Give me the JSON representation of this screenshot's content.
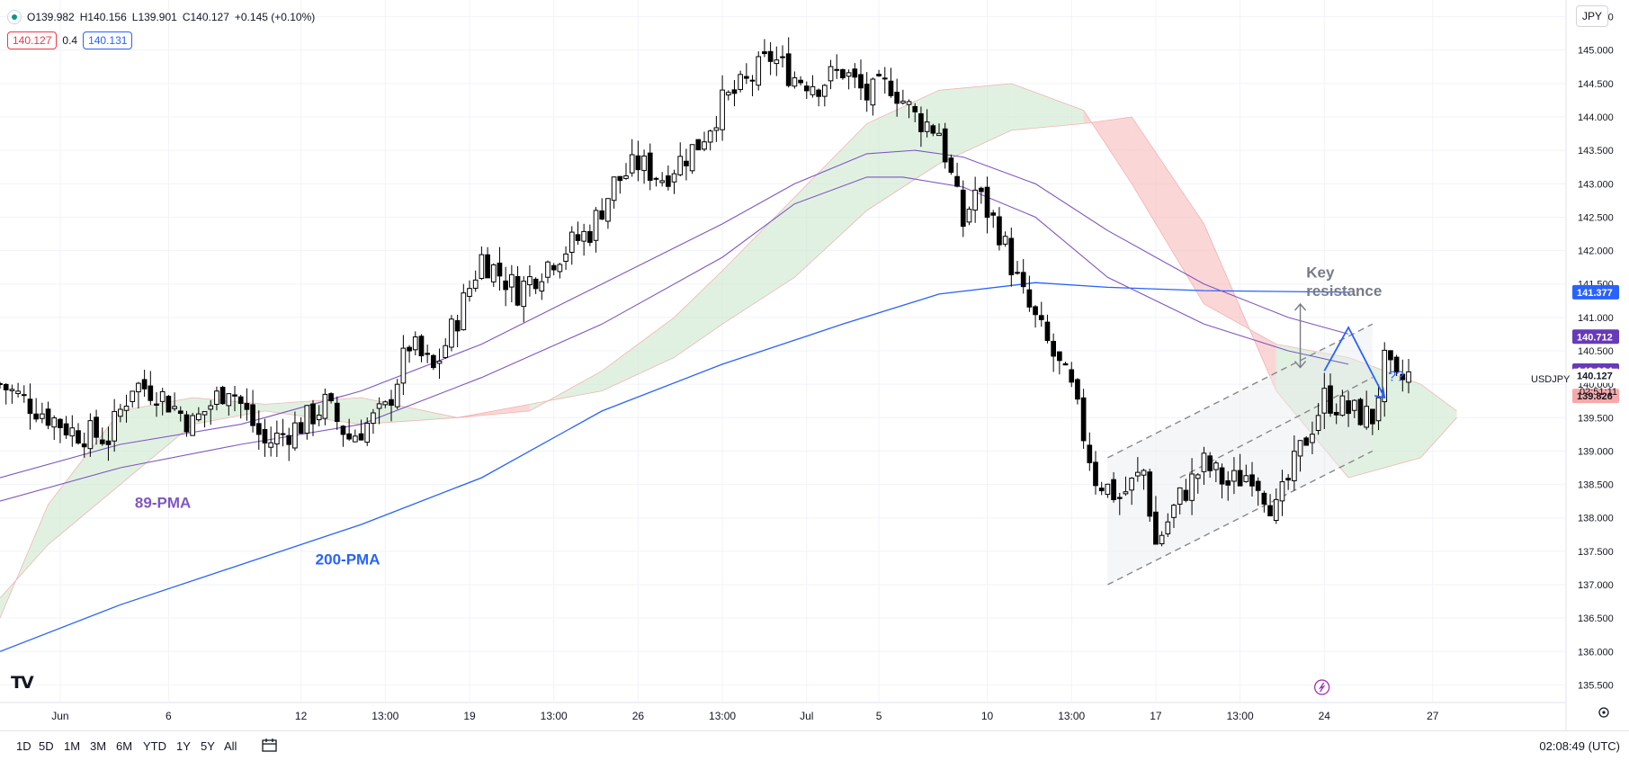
{
  "header": {
    "open": "O139.982",
    "high": "H140.156",
    "low": "L139.901",
    "close": "C140.127",
    "change": "+0.145 (+0.10%)",
    "bid": "140.127",
    "spread": "0.4",
    "ask": "140.131"
  },
  "currency": "JPY",
  "symbol": "USDJPY",
  "countdown": "02:51:11",
  "clock": "02:08:49 (UTC)",
  "logo_text": "TV",
  "timeframes": [
    "1D",
    "5D",
    "1M",
    "3M",
    "6M",
    "YTD",
    "1Y",
    "5Y",
    "All"
  ],
  "colors": {
    "up_candle": "#ffffff",
    "down_candle": "#000000",
    "ma89": "#7e57c2",
    "ma200": "#2962ff",
    "cloud_bull": "#c8e6c9",
    "cloud_bear": "#f8b4b4",
    "projection": "#2962ff",
    "channel": "#888888"
  },
  "chart_data": {
    "type": "candlestick",
    "instrument": "USDJPY",
    "y_axis": {
      "min": 135.25,
      "max": 145.75,
      "ticks": [
        "135.500",
        "136.000",
        "136.500",
        "137.000",
        "137.500",
        "138.000",
        "138.500",
        "139.000",
        "139.500",
        "140.000",
        "140.500",
        "141.000",
        "141.500",
        "142.000",
        "142.500",
        "143.000",
        "143.500",
        "144.000",
        "144.500",
        "145.000",
        "145.500"
      ]
    },
    "x_axis": {
      "start_bar": 0,
      "end_bar": 130,
      "labels": [
        {
          "bar": 5,
          "text": "Jun"
        },
        {
          "bar": 14,
          "text": "6"
        },
        {
          "bar": 25,
          "text": "12"
        },
        {
          "bar": 32,
          "text": "13:00"
        },
        {
          "bar": 39,
          "text": "19"
        },
        {
          "bar": 46,
          "text": "13:00"
        },
        {
          "bar": 53,
          "text": "26"
        },
        {
          "bar": 60,
          "text": "13:00"
        },
        {
          "bar": 67,
          "text": "Jul"
        },
        {
          "bar": 73,
          "text": "5"
        },
        {
          "bar": 82,
          "text": "10"
        },
        {
          "bar": 89,
          "text": "13:00"
        },
        {
          "bar": 96,
          "text": "17"
        },
        {
          "bar": 103,
          "text": "13:00"
        },
        {
          "bar": 110,
          "text": "24"
        },
        {
          "bar": 119,
          "text": "27"
        }
      ]
    },
    "close_path": [
      {
        "bar": 0,
        "close": 140.0
      },
      {
        "bar": 6,
        "close": 139.3
      },
      {
        "bar": 9,
        "close": 139.2
      },
      {
        "bar": 11,
        "close": 140.0
      },
      {
        "bar": 13,
        "close": 139.9
      },
      {
        "bar": 16,
        "close": 139.4
      },
      {
        "bar": 19,
        "close": 140.0
      },
      {
        "bar": 22,
        "close": 139.1
      },
      {
        "bar": 25,
        "close": 139.4
      },
      {
        "bar": 27,
        "close": 139.7
      },
      {
        "bar": 29,
        "close": 139.2
      },
      {
        "bar": 32,
        "close": 139.6
      },
      {
        "bar": 34,
        "close": 140.6
      },
      {
        "bar": 36,
        "close": 140.2
      },
      {
        "bar": 38,
        "close": 141.0
      },
      {
        "bar": 40,
        "close": 141.9
      },
      {
        "bar": 43,
        "close": 141.4
      },
      {
        "bar": 46,
        "close": 141.9
      },
      {
        "bar": 49,
        "close": 142.3
      },
      {
        "bar": 51,
        "close": 143.0
      },
      {
        "bar": 53,
        "close": 143.3
      },
      {
        "bar": 55,
        "close": 143.1
      },
      {
        "bar": 58,
        "close": 143.6
      },
      {
        "bar": 60,
        "close": 144.2
      },
      {
        "bar": 62,
        "close": 144.5
      },
      {
        "bar": 64,
        "close": 144.9
      },
      {
        "bar": 66,
        "close": 144.6
      },
      {
        "bar": 68,
        "close": 144.5
      },
      {
        "bar": 70,
        "close": 144.7
      },
      {
        "bar": 72,
        "close": 144.3
      },
      {
        "bar": 74,
        "close": 144.5
      },
      {
        "bar": 76,
        "close": 144.0
      },
      {
        "bar": 78,
        "close": 143.8
      },
      {
        "bar": 80,
        "close": 142.4
      },
      {
        "bar": 81,
        "close": 142.9
      },
      {
        "bar": 83,
        "close": 142.3
      },
      {
        "bar": 85,
        "close": 141.3
      },
      {
        "bar": 87,
        "close": 140.6
      },
      {
        "bar": 89,
        "close": 139.9
      },
      {
        "bar": 91,
        "close": 138.6
      },
      {
        "bar": 93,
        "close": 138.3
      },
      {
        "bar": 95,
        "close": 138.7
      },
      {
        "bar": 96,
        "close": 137.6
      },
      {
        "bar": 98,
        "close": 138.3
      },
      {
        "bar": 100,
        "close": 138.8
      },
      {
        "bar": 102,
        "close": 138.5
      },
      {
        "bar": 104,
        "close": 138.7
      },
      {
        "bar": 106,
        "close": 138.1
      },
      {
        "bar": 108,
        "close": 139.0
      },
      {
        "bar": 110,
        "close": 139.8
      },
      {
        "bar": 112,
        "close": 139.6
      },
      {
        "bar": 114,
        "close": 139.5
      },
      {
        "bar": 115,
        "close": 140.3
      },
      {
        "bar": 116,
        "close": 140.0
      },
      {
        "bar": 117,
        "close": 140.127
      }
    ],
    "ma89": [
      {
        "bar": 0,
        "v": 138.25
      },
      {
        "bar": 10,
        "v": 138.75
      },
      {
        "bar": 20,
        "v": 139.1
      },
      {
        "bar": 30,
        "v": 139.4
      },
      {
        "bar": 40,
        "v": 140.1
      },
      {
        "bar": 50,
        "v": 140.9
      },
      {
        "bar": 60,
        "v": 141.9
      },
      {
        "bar": 66,
        "v": 142.7
      },
      {
        "bar": 72,
        "v": 143.1
      },
      {
        "bar": 75,
        "v": 143.1
      },
      {
        "bar": 80,
        "v": 142.95
      },
      {
        "bar": 86,
        "v": 142.5
      },
      {
        "bar": 92,
        "v": 141.6
      },
      {
        "bar": 100,
        "v": 140.9
      },
      {
        "bar": 107,
        "v": 140.5
      },
      {
        "bar": 112,
        "v": 140.3
      }
    ],
    "ma_upper": [
      {
        "bar": 0,
        "v": 138.6
      },
      {
        "bar": 10,
        "v": 139.1
      },
      {
        "bar": 20,
        "v": 139.4
      },
      {
        "bar": 30,
        "v": 139.9
      },
      {
        "bar": 40,
        "v": 140.6
      },
      {
        "bar": 50,
        "v": 141.5
      },
      {
        "bar": 60,
        "v": 142.4
      },
      {
        "bar": 66,
        "v": 143.0
      },
      {
        "bar": 72,
        "v": 143.45
      },
      {
        "bar": 76,
        "v": 143.5
      },
      {
        "bar": 80,
        "v": 143.4
      },
      {
        "bar": 86,
        "v": 143.0
      },
      {
        "bar": 92,
        "v": 142.3
      },
      {
        "bar": 100,
        "v": 141.5
      },
      {
        "bar": 107,
        "v": 141.0
      },
      {
        "bar": 112,
        "v": 140.75
      }
    ],
    "ma200": [
      {
        "bar": 0,
        "v": 136.0
      },
      {
        "bar": 10,
        "v": 136.7
      },
      {
        "bar": 20,
        "v": 137.3
      },
      {
        "bar": 30,
        "v": 137.9
      },
      {
        "bar": 40,
        "v": 138.6
      },
      {
        "bar": 50,
        "v": 139.6
      },
      {
        "bar": 60,
        "v": 140.3
      },
      {
        "bar": 70,
        "v": 140.9
      },
      {
        "bar": 78,
        "v": 141.35
      },
      {
        "bar": 86,
        "v": 141.52
      },
      {
        "bar": 92,
        "v": 141.45
      },
      {
        "bar": 100,
        "v": 141.4
      },
      {
        "bar": 112,
        "v": 141.377
      }
    ],
    "cloud_span_a": [
      {
        "bar": 0,
        "v": 136.5
      },
      {
        "bar": 4,
        "v": 138.2
      },
      {
        "bar": 10,
        "v": 139.6
      },
      {
        "bar": 16,
        "v": 139.8
      },
      {
        "bar": 22,
        "v": 139.7
      },
      {
        "bar": 30,
        "v": 139.8
      },
      {
        "bar": 38,
        "v": 139.5
      },
      {
        "bar": 44,
        "v": 139.6
      },
      {
        "bar": 50,
        "v": 140.2
      },
      {
        "bar": 56,
        "v": 141.0
      },
      {
        "bar": 60,
        "v": 141.7
      },
      {
        "bar": 66,
        "v": 142.8
      },
      {
        "bar": 72,
        "v": 143.9
      },
      {
        "bar": 78,
        "v": 144.4
      },
      {
        "bar": 84,
        "v": 144.5
      },
      {
        "bar": 90,
        "v": 144.1
      },
      {
        "bar": 94,
        "v": 143.0
      },
      {
        "bar": 100,
        "v": 141.2
      },
      {
        "bar": 106,
        "v": 140.6
      },
      {
        "bar": 112,
        "v": 140.4
      },
      {
        "bar": 118,
        "v": 140.0
      },
      {
        "bar": 121,
        "v": 139.6
      }
    ],
    "cloud_span_b": [
      {
        "bar": 0,
        "v": 136.8
      },
      {
        "bar": 4,
        "v": 137.6
      },
      {
        "bar": 10,
        "v": 138.5
      },
      {
        "bar": 16,
        "v": 139.4
      },
      {
        "bar": 22,
        "v": 139.6
      },
      {
        "bar": 30,
        "v": 139.4
      },
      {
        "bar": 38,
        "v": 139.5
      },
      {
        "bar": 44,
        "v": 139.7
      },
      {
        "bar": 50,
        "v": 139.9
      },
      {
        "bar": 56,
        "v": 140.4
      },
      {
        "bar": 60,
        "v": 140.9
      },
      {
        "bar": 66,
        "v": 141.6
      },
      {
        "bar": 72,
        "v": 142.6
      },
      {
        "bar": 78,
        "v": 143.3
      },
      {
        "bar": 84,
        "v": 143.8
      },
      {
        "bar": 90,
        "v": 143.9
      },
      {
        "bar": 94,
        "v": 144.0
      },
      {
        "bar": 100,
        "v": 142.4
      },
      {
        "bar": 106,
        "v": 139.9
      },
      {
        "bar": 112,
        "v": 138.6
      },
      {
        "bar": 118,
        "v": 138.9
      },
      {
        "bar": 121,
        "v": 139.5
      }
    ],
    "channel": {
      "upper": [
        {
          "bar": 92,
          "v": 138.9
        },
        {
          "bar": 114,
          "v": 140.9
        }
      ],
      "middle": [
        {
          "bar": 98,
          "v": 138.6
        },
        {
          "bar": 114,
          "v": 140.1
        }
      ],
      "lower": [
        {
          "bar": 92,
          "v": 137.0
        },
        {
          "bar": 114,
          "v": 139.0
        }
      ]
    },
    "projection": [
      {
        "bar": 110,
        "v": 140.2
      },
      {
        "bar": 112,
        "v": 140.85
      },
      {
        "bar": 115,
        "v": 139.8
      }
    ],
    "resistance_arrow": {
      "bar": 108,
      "from": 141.2,
      "to": 140.25
    },
    "labels": {
      "ma89": "89-PMA",
      "ma200": "200-PMA",
      "key_resistance_1": "Key",
      "key_resistance_2": "resistance",
      "question": "??"
    },
    "price_tags": [
      {
        "value": 141.377,
        "text": "141.377",
        "color": "#2962ff",
        "text_color": "#ffffff"
      },
      {
        "value": 140.712,
        "text": "140.712",
        "color": "#673ab7",
        "text_color": "#ffffff"
      },
      {
        "value": 140.204,
        "text": "140.204",
        "color": "#673ab7",
        "text_color": "#ffffff"
      },
      {
        "value": 140.127,
        "text": "140.127",
        "color": "#ffffff",
        "text_color": "#131722"
      },
      {
        "value": 139.826,
        "text": "139.826",
        "color": "#f7a9a9",
        "text_color": "#131722"
      }
    ]
  }
}
